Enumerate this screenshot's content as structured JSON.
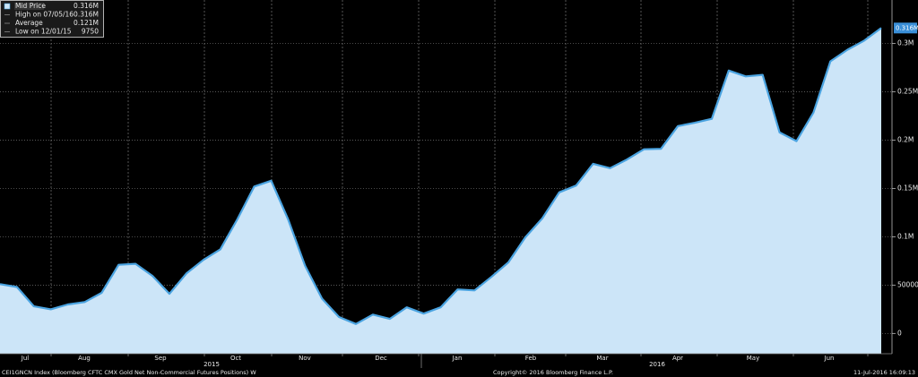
{
  "chart_data": {
    "type": "area",
    "series": [
      {
        "name": "Mid Price",
        "color": "#4aa3e0",
        "fill": "#cce5f8",
        "values": [
          51000,
          48000,
          28000,
          25000,
          30000,
          32500,
          42000,
          71000,
          72000,
          59500,
          41000,
          62000,
          76000,
          87000,
          118000,
          152000,
          158000,
          118000,
          70000,
          36000,
          17000,
          9750,
          19500,
          15000,
          27000,
          20500,
          27000,
          45500,
          44500,
          58500,
          73500,
          99500,
          119000,
          146000,
          153000,
          175500,
          171000,
          180000,
          190500,
          191000,
          214500,
          218000,
          222000,
          272000,
          266000,
          267500,
          208000,
          199000,
          228500,
          281500,
          293500,
          303000,
          316000
        ]
      }
    ],
    "ylim": [
      -21000,
      345000
    ],
    "yticks": [
      0,
      50000,
      {
        "value": 100000,
        "label": "0.1M"
      },
      {
        "value": 150000,
        "label": "0.15M"
      },
      {
        "value": 200000,
        "label": "0.2M"
      },
      {
        "value": 250000,
        "label": "0.25M"
      },
      {
        "value": 300000,
        "label": "0.3M"
      }
    ],
    "last_value_label": "0.316M",
    "month_labels": [
      "Jul",
      "Aug",
      "Sep",
      "Oct",
      "Nov",
      "Dec",
      "Jan",
      "Feb",
      "Mar",
      "Apr",
      "May",
      "Jun"
    ],
    "year_labels": [
      "2015",
      "2016"
    ],
    "grid": true,
    "legend": [
      {
        "label": "Mid Price",
        "value": 316000,
        "value_label": "0.316M"
      },
      {
        "label": "High on 07/05/16",
        "value": 316000,
        "value_label": "0.316M"
      },
      {
        "label": "Average",
        "value": 121000,
        "value_label": "0.121M"
      },
      {
        "label": "Low on 12/01/15",
        "value": 9750
      }
    ],
    "footer_left": "CEI1GNCN Index (Bloomberg CFTC CMX Gold Net Non-Commercial Futures Positions)  W",
    "footer_center": "Copyright© 2016 Bloomberg Finance L.P.",
    "footer_right": "11-Jul-2016 16:09:13"
  }
}
